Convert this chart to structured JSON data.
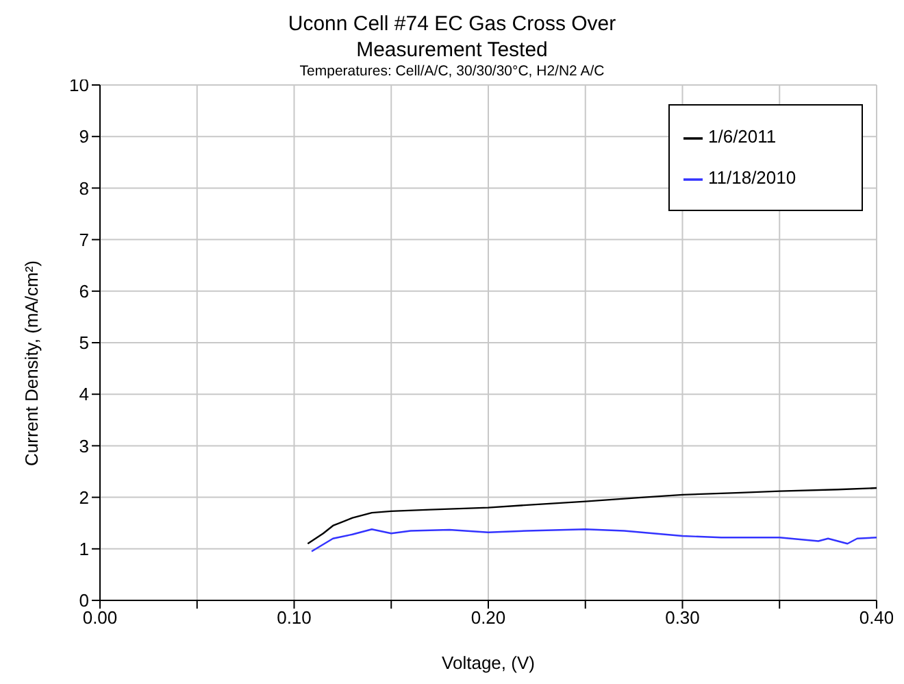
{
  "chart_data": {
    "type": "line",
    "title": "Uconn Cell #74 EC Gas Cross Over\nMeasurement Tested",
    "subtitle": "Temperatures: Cell/A/C, 30/30/30°C, H2/N2 A/C",
    "xlabel": "Voltage, (V)",
    "ylabel": "Current Density, (mA/cm²)",
    "xlim": [
      0,
      0.4
    ],
    "xticks": [
      {
        "value": 0,
        "label": "0.00"
      },
      {
        "value": 0.05,
        "label": null
      },
      {
        "value": 0.1,
        "label": "0.10"
      },
      {
        "value": 0.15,
        "label": null
      },
      {
        "value": 0.2,
        "label": "0.20"
      },
      {
        "value": 0.25,
        "label": null
      },
      {
        "value": 0.3,
        "label": "0.30"
      },
      {
        "value": 0.35,
        "label": null
      },
      {
        "value": 0.4,
        "label": "0.40"
      }
    ],
    "ylim": [
      0,
      10
    ],
    "yticks": [
      0,
      1,
      2,
      3,
      4,
      5,
      6,
      7,
      8,
      9,
      10
    ],
    "grid": true,
    "legend": "top right",
    "marker": "none",
    "line_style": "solid",
    "series": [
      {
        "name": "1/6/2011",
        "color": "#000000",
        "x": [
          0.107,
          0.115,
          0.12,
          0.13,
          0.14,
          0.15,
          0.17,
          0.2,
          0.22,
          0.25,
          0.28,
          0.3,
          0.33,
          0.35,
          0.38,
          0.4
        ],
        "values": [
          1.1,
          1.3,
          1.45,
          1.6,
          1.7,
          1.73,
          1.76,
          1.8,
          1.85,
          1.92,
          2.0,
          2.05,
          2.09,
          2.12,
          2.15,
          2.18
        ]
      },
      {
        "name": "11/18/2010",
        "color": "#3333ff",
        "x": [
          0.109,
          0.12,
          0.13,
          0.14,
          0.15,
          0.16,
          0.18,
          0.2,
          0.22,
          0.25,
          0.27,
          0.3,
          0.32,
          0.35,
          0.37,
          0.375,
          0.385,
          0.39,
          0.4
        ],
        "values": [
          0.95,
          1.2,
          1.28,
          1.38,
          1.3,
          1.35,
          1.37,
          1.32,
          1.35,
          1.38,
          1.35,
          1.25,
          1.22,
          1.22,
          1.15,
          1.2,
          1.1,
          1.2,
          1.22
        ]
      }
    ]
  }
}
